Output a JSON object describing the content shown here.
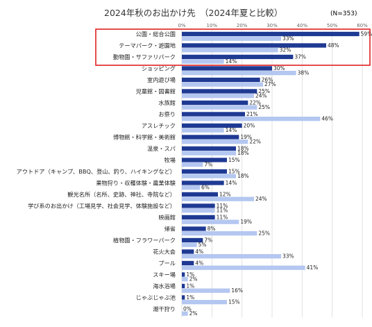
{
  "chart_data": {
    "type": "bar",
    "orientation": "horizontal",
    "title": "2024年秋のお出かけ先　（2024年夏と比較）",
    "sample_size": "(N=353)",
    "xlim": [
      0,
      60
    ],
    "xticks": [
      "0%",
      "10%",
      "20%",
      "30%",
      "40%",
      "50%",
      "60%"
    ],
    "grid": true,
    "highlight_box_categories": [
      "公園・総合公園",
      "テーマパーク・遊園地",
      "動物園・サファリパーク"
    ],
    "colors": {
      "autumn": "#1f3a93",
      "summer": "#b4c7f0",
      "highlight": "#e02020"
    },
    "categories": [
      "公園・総合公園",
      "テーマパーク・遊園地",
      "動物園・サファリパーク",
      "ショッピング",
      "室内遊び場",
      "児童館・図書館",
      "水族館",
      "お祭り",
      "アスレチック",
      "博物館・科学館・美術館",
      "温泉・スパ",
      "牧場",
      "アウトドア（キャンプ、BBQ、登山、釣り、ハイキングなど）",
      "果物狩り・収穫体験・農業体験",
      "観光名所（名所、史跡、神社、寺院など）",
      "学び系のお出かけ（工場見学、社会見学、体験施設など）",
      "映画館",
      "帰省",
      "植物園・フラワーパーク",
      "花火大会",
      "プール",
      "スキー場",
      "海水浴場",
      "じゃぶじゃぶ池",
      "潮干狩り"
    ],
    "series": [
      {
        "values": [
          59,
          48,
          37,
          30,
          26,
          25,
          22,
          21,
          20,
          19,
          18,
          15,
          15,
          14,
          12,
          11,
          11,
          8,
          7,
          4,
          4,
          1,
          1,
          1,
          0
        ],
        "labels": [
          "59%",
          "48%",
          "37%",
          "30%",
          "26%",
          "25%",
          "22%",
          "21%",
          "20%",
          "19%",
          "18%",
          "15%",
          "15%",
          "14%",
          "12%",
          "11%",
          "11%",
          "8%",
          "7%",
          "4%",
          "4%",
          "1%",
          "1%",
          "1%",
          "0%"
        ]
      },
      {
        "values": [
          33,
          32,
          14,
          38,
          27,
          24,
          25,
          46,
          14,
          22,
          18,
          7,
          18,
          6,
          24,
          11,
          19,
          25,
          5,
          33,
          41,
          2,
          16,
          15,
          2
        ],
        "labels": [
          "33%",
          "32%",
          "14%",
          "38%",
          "27%",
          "24%",
          "25%",
          "46%",
          "14%",
          "22%",
          "18%",
          "7%",
          "18%",
          "6%",
          "24%",
          "11%",
          "19%",
          "25%",
          "5%",
          "33%",
          "41%",
          "2%",
          "16%",
          "15%",
          "2%"
        ]
      }
    ]
  }
}
